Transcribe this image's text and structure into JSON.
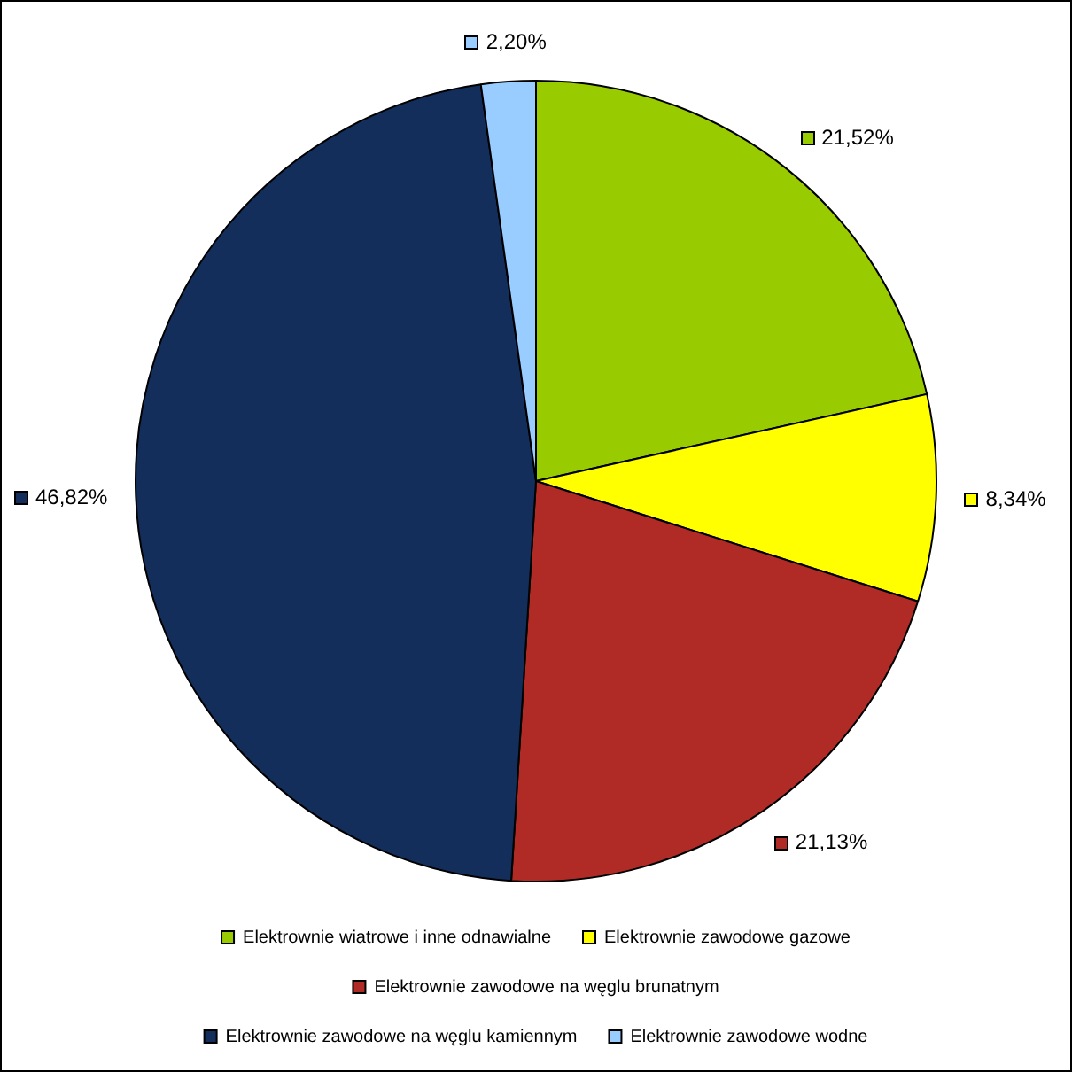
{
  "chart_data": {
    "type": "pie",
    "categories": [
      "Elektrownie wiatrowe i inne odnawialne",
      "Elektrownie zawodowe gazowe",
      "Elektrownie zawodowe na węglu brunatnym",
      "Elektrownie zawodowe na węglu kamiennym",
      "Elektrownie zawodowe wodne"
    ],
    "values": [
      21.52,
      8.34,
      21.13,
      46.82,
      2.2
    ],
    "value_labels": [
      "21,52%",
      "8,34%",
      "21,13%",
      "46,82%",
      "2,20%"
    ],
    "colors": [
      "#99cc00",
      "#ffff00",
      "#b02a26",
      "#132e5a",
      "#99ccff"
    ],
    "legend": "bottom"
  }
}
